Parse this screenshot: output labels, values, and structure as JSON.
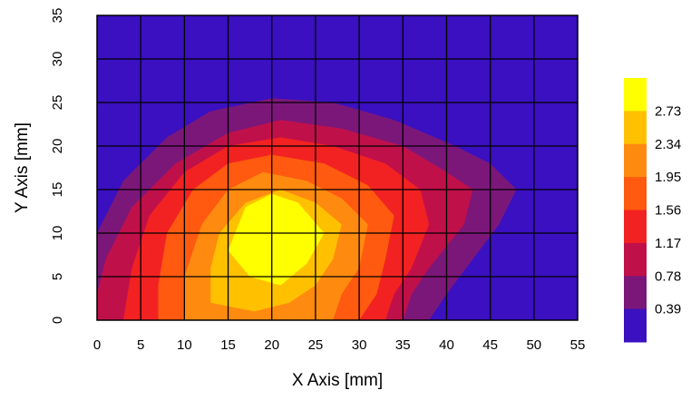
{
  "chart_data": {
    "type": "heatmap",
    "title": "",
    "xlabel": "X Axis [mm]",
    "ylabel": "Y Axis [mm]",
    "xlim": [
      0,
      55
    ],
    "ylim": [
      0,
      35
    ],
    "x_ticks": [
      "0",
      "5",
      "10",
      "15",
      "20",
      "25",
      "30",
      "35",
      "40",
      "45",
      "50",
      "55"
    ],
    "y_ticks": [
      "0",
      "5",
      "10",
      "15",
      "20",
      "25",
      "30",
      "35"
    ],
    "grid": true,
    "grid_step": 5,
    "colorbar": {
      "labels": [
        "0.39",
        "0.78",
        "1.17",
        "1.56",
        "1.95",
        "2.34",
        "2.73"
      ],
      "levels": [
        0,
        0.39,
        0.78,
        1.17,
        1.56,
        1.95,
        2.34,
        2.73,
        3.12
      ],
      "colors": [
        "#3a10c0",
        "#7c177a",
        "#c0104a",
        "#f22222",
        "#ff5a10",
        "#ff8a10",
        "#ffc000",
        "#ffff00"
      ]
    },
    "contour_regions": [
      {
        "level": 0.39,
        "points": [
          [
            0,
            0
          ],
          [
            0,
            10
          ],
          [
            3,
            16
          ],
          [
            8,
            21
          ],
          [
            13,
            24
          ],
          [
            20,
            25.5
          ],
          [
            27,
            25
          ],
          [
            34,
            23
          ],
          [
            41,
            20
          ],
          [
            45,
            18
          ],
          [
            48,
            15
          ],
          [
            46,
            11
          ],
          [
            43,
            7
          ],
          [
            40,
            3
          ],
          [
            38,
            0
          ]
        ]
      },
      {
        "level": 0.78,
        "points": [
          [
            0,
            0
          ],
          [
            0,
            3
          ],
          [
            1,
            7
          ],
          [
            4,
            13
          ],
          [
            9,
            18
          ],
          [
            15,
            21.5
          ],
          [
            21,
            23
          ],
          [
            28,
            22
          ],
          [
            35,
            20
          ],
          [
            40,
            17
          ],
          [
            43,
            15
          ],
          [
            42,
            11
          ],
          [
            38,
            6
          ],
          [
            36,
            3
          ],
          [
            35,
            0
          ]
        ]
      },
      {
        "level": 1.17,
        "points": [
          [
            3,
            0
          ],
          [
            4,
            6
          ],
          [
            6,
            12
          ],
          [
            10,
            17
          ],
          [
            15,
            20
          ],
          [
            21,
            21
          ],
          [
            27,
            20
          ],
          [
            33,
            18
          ],
          [
            37,
            15
          ],
          [
            38,
            11
          ],
          [
            36,
            6
          ],
          [
            34,
            3
          ],
          [
            33,
            0
          ]
        ]
      },
      {
        "level": 1.56,
        "points": [
          [
            7,
            0
          ],
          [
            7,
            4
          ],
          [
            8,
            10
          ],
          [
            11,
            15
          ],
          [
            15,
            18
          ],
          [
            20,
            19
          ],
          [
            26,
            18
          ],
          [
            31,
            15.5
          ],
          [
            34,
            12
          ],
          [
            33,
            7
          ],
          [
            32,
            3
          ],
          [
            30,
            0
          ]
        ]
      },
      {
        "level": 1.95,
        "points": [
          [
            10,
            0
          ],
          [
            10,
            5
          ],
          [
            12,
            11
          ],
          [
            15,
            15
          ],
          [
            19,
            17
          ],
          [
            24,
            16
          ],
          [
            28,
            14
          ],
          [
            31,
            11
          ],
          [
            30,
            6
          ],
          [
            28,
            3
          ],
          [
            27,
            0
          ]
        ]
      },
      {
        "level": 2.34,
        "points": [
          [
            13,
            2
          ],
          [
            13,
            6
          ],
          [
            14,
            10
          ],
          [
            17,
            13.5
          ],
          [
            21,
            15
          ],
          [
            25,
            13.5
          ],
          [
            28,
            11
          ],
          [
            27,
            7
          ],
          [
            25,
            4
          ],
          [
            22,
            2
          ],
          [
            18,
            1
          ]
        ]
      },
      {
        "level": 2.73,
        "points": [
          [
            15,
            8
          ],
          [
            17,
            13
          ],
          [
            20,
            14.5
          ],
          [
            23,
            13.5
          ],
          [
            26,
            10
          ],
          [
            24,
            6.5
          ],
          [
            21,
            4
          ],
          [
            17.5,
            5
          ]
        ]
      }
    ]
  }
}
